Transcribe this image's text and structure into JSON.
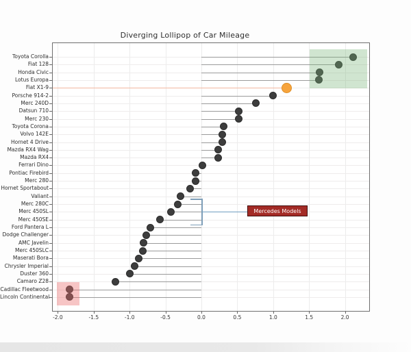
{
  "chart_data": {
    "type": "scatter",
    "variant": "diverging-lollipop",
    "title": "Diverging Lollipop of Car Mileage",
    "xlabel": "",
    "ylabel": "",
    "xlim": [
      -2.08,
      2.35
    ],
    "grid": true,
    "x_ticks": [
      -2.0,
      -1.5,
      -1.0,
      -0.5,
      0.0,
      0.5,
      1.0,
      1.5,
      2.0
    ],
    "x_tick_labels": [
      "-2.0",
      "-1.5",
      "-1.0",
      "-0.5",
      "0.0",
      "0.5",
      "1.0",
      "1.5",
      "2.0"
    ],
    "categories": [
      "Toyota Corolla",
      "Fiat 128",
      "Honda Civic",
      "Lotus Europa",
      "Fiat X1-9",
      "Porsche 914-2",
      "Merc 240D",
      "Datsun 710",
      "Merc 230",
      "Toyota Corona",
      "Volvo 142E",
      "Hornet 4 Drive",
      "Mazda RX4 Wag",
      "Mazda RX4",
      "Ferrari Dino",
      "Pontiac Firebird",
      "Merc 280",
      "Hornet Sportabout",
      "Valiant",
      "Merc 280C",
      "Merc 450SL",
      "Merc 450SE",
      "Ford Pantera L",
      "Dodge Challenger",
      "AMC Javelin",
      "Merc 450SLC",
      "Maserati Bora",
      "Chrysler Imperial",
      "Duster 360",
      "Camaro Z28",
      "Cadillac Fleetwood",
      "Lincoln Continental"
    ],
    "values": [
      2.11,
      1.91,
      1.65,
      1.64,
      1.19,
      1.0,
      0.76,
      0.52,
      0.52,
      0.31,
      0.29,
      0.29,
      0.23,
      0.23,
      0.01,
      -0.08,
      -0.08,
      -0.16,
      -0.29,
      -0.33,
      -0.42,
      -0.58,
      -0.71,
      -0.77,
      -0.81,
      -0.82,
      -0.87,
      -0.93,
      -1.0,
      -1.2,
      -1.84,
      -1.84
    ],
    "colors": {
      "dot": "#3d3d3d",
      "dot_edge": "#2b2b2b",
      "stem": "#9a9a9a",
      "grid": "#ececec",
      "panel_border": "#6e6e6e",
      "title_text": "#2e2e2e"
    },
    "highlight_point": {
      "category": "Fiat X1-9",
      "value": 1.19,
      "dot_color": "#F7A43C",
      "stem_color": "#F3B79E"
    },
    "annotations": {
      "label_box": {
        "text": "Mercedes Models",
        "fill": "#A32B26",
        "text_color": "#ffffff",
        "bracket_color": "#7D9EB8",
        "targets": [
          "Merc 280C",
          "Merc 450SL",
          "Merc 450SE"
        ]
      },
      "highlight_boxes": [
        {
          "name": "top-performers-box",
          "color": "120,180,120",
          "alpha": 0.35,
          "x_range": [
            1.51,
            2.31
          ],
          "category_range": [
            "Toyota Corolla",
            "Lotus Europa"
          ]
        },
        {
          "name": "bottom-performers-box",
          "color": "235,110,110",
          "alpha": 0.4,
          "x_range": [
            -2.01,
            -1.7
          ],
          "category_range": [
            "Cadillac Fleetwood",
            "Lincoln Continental"
          ]
        }
      ]
    }
  }
}
